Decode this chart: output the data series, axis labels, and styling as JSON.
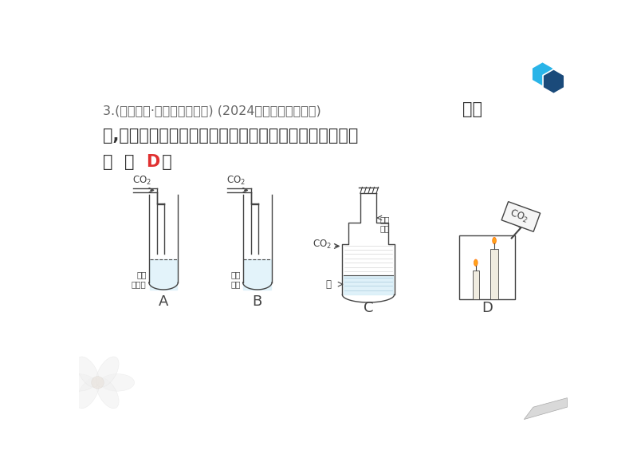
{
  "bg_color": "#ffffff",
  "text_color": "#333333",
  "answer_color": "#e03030",
  "hex_color1": "#29b4e8",
  "hex_color2": "#1a4a7a",
  "line_color": "#444444",
  "liquid_color": "#d8eef8",
  "label_A": "A",
  "label_B": "B",
  "label_C": "C",
  "label_D": "D"
}
